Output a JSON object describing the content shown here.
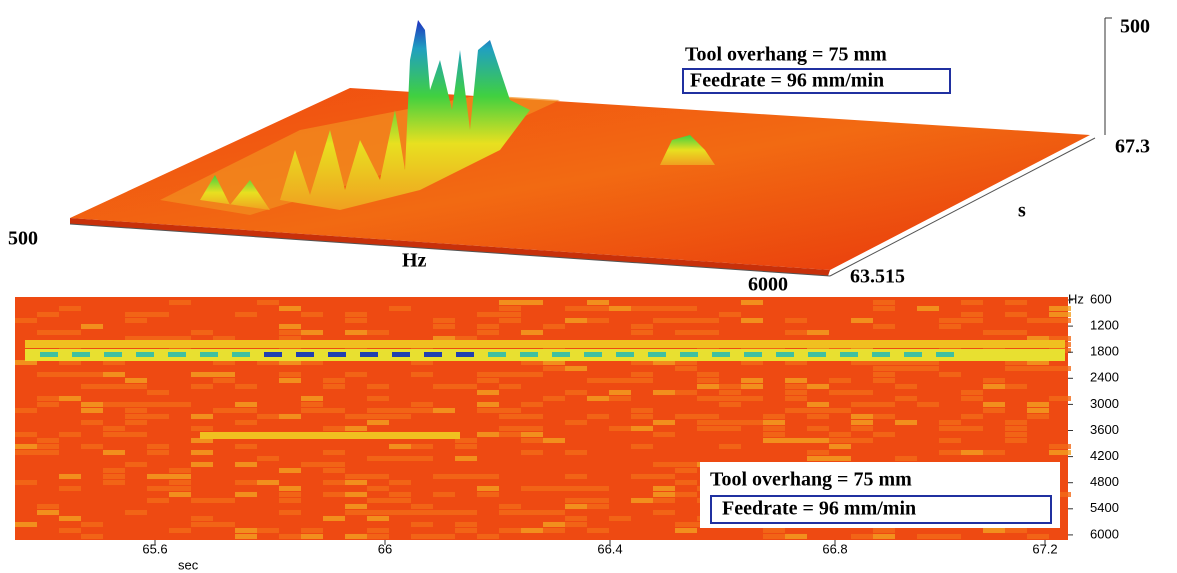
{
  "top_plot": {
    "x_start": "500",
    "x_end": "6000",
    "x_label": "Hz",
    "y_start": "63.515",
    "y_end": "67.3",
    "y_label": "s",
    "z_top": "500",
    "annotation": {
      "overhang": "Tool overhang = 75 mm",
      "feedrate": "Feedrate = 96 mm/min"
    }
  },
  "bottom_plot": {
    "y_unit": "Hz",
    "yticks": [
      "600",
      "1200",
      "1800",
      "2400",
      "3000",
      "3600",
      "4200",
      "4800",
      "5400",
      "6000"
    ],
    "xticks": [
      "65.6",
      "66",
      "66.4",
      "66.8",
      "67.2"
    ],
    "x_unit": "sec",
    "annotation": {
      "overhang": "Tool overhang = 75 mm",
      "feedrate": "Feedrate = 96 mm/min"
    }
  }
}
